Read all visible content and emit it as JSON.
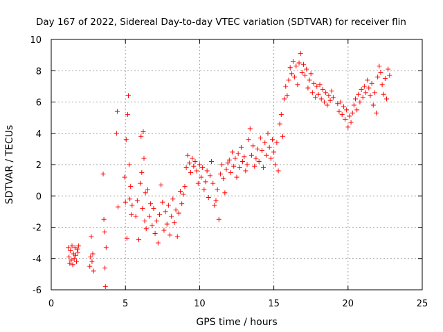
{
  "chart_data": {
    "type": "scatter",
    "title": "Day 167 of 2022, Sidereal Day-to-day VTEC variation (SDTVAR) for receiver flin",
    "xlabel": "GPS time / hours",
    "ylabel": "SDTVAR / TECUs",
    "xlim": [
      0,
      25
    ],
    "ylim": [
      -6,
      10
    ],
    "xticks": [
      0,
      5,
      10,
      15,
      20,
      25
    ],
    "yticks": [
      -6,
      -4,
      -2,
      0,
      2,
      4,
      6,
      8,
      10
    ],
    "xtick_labels": [
      "0",
      "5",
      "10",
      "15",
      "20",
      "25"
    ],
    "ytick_labels": [
      "-6",
      "-4",
      "-2",
      "0",
      "2",
      "4",
      "6",
      "8",
      "10"
    ],
    "grid": true,
    "marker": "+",
    "color": "#ff0000",
    "series": [
      {
        "name": "SDTVAR",
        "x": [
          1.15,
          1.2,
          1.25,
          1.3,
          1.35,
          1.4,
          1.45,
          1.5,
          1.55,
          1.6,
          1.65,
          1.7,
          1.75,
          1.8,
          1.85,
          2.6,
          2.65,
          2.7,
          2.75,
          2.8,
          2.85,
          3.5,
          3.55,
          3.6,
          3.62,
          3.65,
          3.7,
          4.4,
          4.45,
          4.5,
          4.95,
          5.0,
          5.05,
          5.1,
          5.15,
          5.2,
          5.25,
          5.3,
          5.35,
          5.4,
          5.45,
          5.7,
          5.8,
          5.9,
          6.0,
          6.05,
          6.1,
          6.15,
          6.2,
          6.25,
          6.3,
          6.35,
          6.4,
          6.5,
          6.6,
          6.7,
          6.8,
          6.9,
          7.0,
          7.1,
          7.2,
          7.3,
          7.4,
          7.5,
          7.6,
          7.7,
          7.8,
          7.9,
          8.0,
          8.1,
          8.2,
          8.3,
          8.4,
          8.5,
          8.6,
          8.7,
          8.8,
          8.9,
          9.0,
          9.1,
          9.2,
          9.3,
          9.4,
          9.5,
          9.6,
          9.7,
          9.8,
          9.9,
          10.0,
          10.1,
          10.2,
          10.3,
          10.4,
          10.5,
          10.6,
          10.7,
          10.8,
          10.9,
          11.0,
          11.1,
          11.2,
          11.3,
          11.4,
          11.5,
          11.6,
          11.7,
          11.8,
          11.9,
          12.0,
          12.1,
          12.2,
          12.3,
          12.4,
          12.5,
          12.6,
          12.7,
          12.8,
          12.9,
          13.0,
          13.1,
          13.2,
          13.3,
          13.4,
          13.5,
          13.6,
          13.7,
          13.8,
          13.9,
          14.0,
          14.1,
          14.2,
          14.3,
          14.4,
          14.5,
          14.6,
          14.7,
          14.8,
          14.9,
          15.0,
          15.1,
          15.2,
          15.3,
          15.4,
          15.5,
          15.6,
          15.7,
          15.8,
          15.9,
          16.0,
          16.1,
          16.2,
          16.3,
          16.4,
          16.5,
          16.6,
          16.7,
          16.8,
          16.9,
          17.0,
          17.1,
          17.2,
          17.3,
          17.4,
          17.5,
          17.6,
          17.7,
          17.8,
          17.9,
          18.0,
          18.1,
          18.2,
          18.3,
          18.4,
          18.5,
          18.6,
          18.7,
          18.8,
          18.9,
          19.0,
          19.3,
          19.4,
          19.5,
          19.6,
          19.7,
          19.8,
          19.9,
          20.0,
          20.1,
          20.2,
          20.3,
          20.4,
          20.5,
          20.6,
          20.7,
          20.8,
          20.9,
          21.0,
          21.1,
          21.2,
          21.3,
          21.4,
          21.5,
          21.6,
          21.7,
          21.8,
          21.9,
          22.0,
          22.1,
          22.2,
          22.3,
          22.4,
          22.5,
          22.6,
          22.7,
          22.8
        ],
        "y": [
          -3.3,
          -3.9,
          -4.3,
          -3.5,
          -4.1,
          -3.2,
          -4.4,
          -3.7,
          -4.0,
          -3.3,
          -3.8,
          -4.2,
          -3.4,
          -3.6,
          -3.2,
          -4.5,
          -3.9,
          -2.6,
          -4.2,
          -3.7,
          -4.8,
          1.4,
          -1.5,
          -2.3,
          -4.6,
          -5.8,
          -3.3,
          4.0,
          5.4,
          -0.7,
          1.2,
          -0.4,
          3.6,
          -2.7,
          5.2,
          6.4,
          2.0,
          -0.2,
          0.6,
          -1.2,
          -0.6,
          -1.3,
          -0.3,
          -2.8,
          0.8,
          3.8,
          1.5,
          -0.8,
          4.1,
          2.4,
          -1.6,
          0.2,
          -2.1,
          0.4,
          -1.3,
          -0.5,
          -1.9,
          -0.8,
          -2.4,
          -1.6,
          -3.0,
          -1.2,
          0.7,
          -0.4,
          -2.2,
          -1.0,
          -1.8,
          -0.6,
          -2.5,
          -1.3,
          -0.2,
          -1.7,
          -0.9,
          -2.6,
          -1.1,
          0.3,
          -0.5,
          0.1,
          0.6,
          1.8,
          2.6,
          2.1,
          1.5,
          2.4,
          1.9,
          2.2,
          1.6,
          0.8,
          2.0,
          1.2,
          1.8,
          0.4,
          0.9,
          1.6,
          -0.1,
          1.3,
          2.2,
          0.8,
          -0.6,
          -0.3,
          0.4,
          -1.5,
          1.4,
          2.0,
          1.1,
          0.2,
          1.7,
          2.1,
          2.3,
          1.5,
          2.8,
          1.9,
          2.4,
          1.2,
          2.7,
          1.8,
          3.1,
          2.2,
          2.5,
          1.6,
          2.0,
          3.6,
          4.3,
          2.6,
          3.2,
          1.9,
          2.4,
          3.0,
          2.2,
          3.7,
          2.9,
          1.8,
          3.4,
          2.6,
          4.0,
          3.1,
          2.4,
          3.6,
          2.8,
          2.0,
          3.4,
          1.6,
          4.6,
          5.2,
          3.8,
          6.2,
          7.0,
          6.4,
          7.4,
          8.2,
          7.8,
          8.6,
          7.6,
          8.3,
          7.1,
          8.5,
          9.1,
          7.9,
          8.4,
          7.7,
          8.1,
          6.9,
          7.4,
          7.8,
          6.6,
          7.2,
          6.3,
          7.0,
          6.5,
          7.1,
          6.2,
          6.8,
          6.0,
          6.6,
          5.8,
          6.4,
          6.1,
          6.7,
          6.3,
          5.9,
          5.4,
          6.0,
          5.2,
          5.7,
          4.9,
          5.5,
          4.4,
          5.1,
          4.7,
          5.3,
          5.8,
          6.2,
          5.5,
          6.5,
          6.0,
          6.8,
          6.3,
          7.0,
          6.6,
          7.4,
          6.9,
          6.4,
          7.2,
          5.8,
          6.6,
          5.3,
          7.6,
          8.3,
          7.9,
          7.1,
          6.5,
          7.5,
          6.2,
          8.1,
          7.7
        ]
      }
    ]
  }
}
